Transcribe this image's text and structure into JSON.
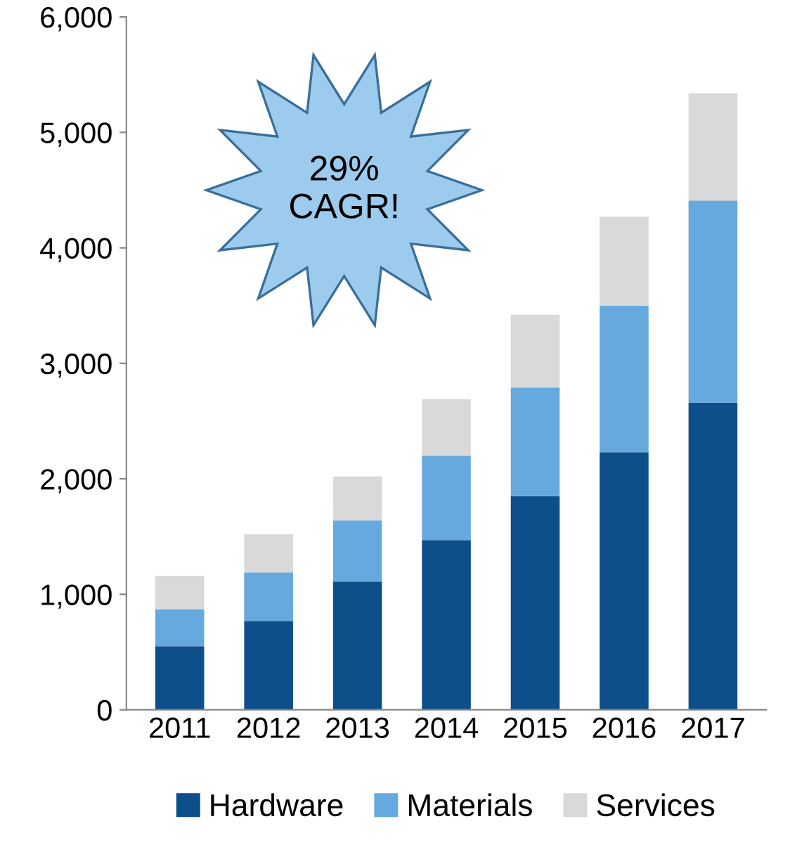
{
  "chart_data": {
    "type": "bar",
    "stacked": true,
    "categories": [
      "2011",
      "2012",
      "2013",
      "2014",
      "2015",
      "2016",
      "2017"
    ],
    "series": [
      {
        "name": "Hardware",
        "color": "#0d4f8b",
        "values": [
          550,
          770,
          1110,
          1470,
          1850,
          2230,
          2660
        ]
      },
      {
        "name": "Materials",
        "color": "#65a9de",
        "values": [
          320,
          420,
          530,
          730,
          940,
          1270,
          1750
        ]
      },
      {
        "name": "Services",
        "color": "#d9d9d9",
        "values": [
          290,
          330,
          380,
          490,
          630,
          770,
          930
        ]
      }
    ],
    "ylim": [
      0,
      6000
    ],
    "yticks": [
      {
        "value": 0,
        "label": "0"
      },
      {
        "value": 1000,
        "label": "1,000"
      },
      {
        "value": 2000,
        "label": "2,000"
      },
      {
        "value": 3000,
        "label": "3,000"
      },
      {
        "value": 4000,
        "label": "4,000"
      },
      {
        "value": 5000,
        "label": "5,000"
      },
      {
        "value": 6000,
        "label": "6,000"
      }
    ],
    "annotations": [
      "29%\nCAGR!"
    ],
    "grid": false,
    "legend": "bottom"
  }
}
